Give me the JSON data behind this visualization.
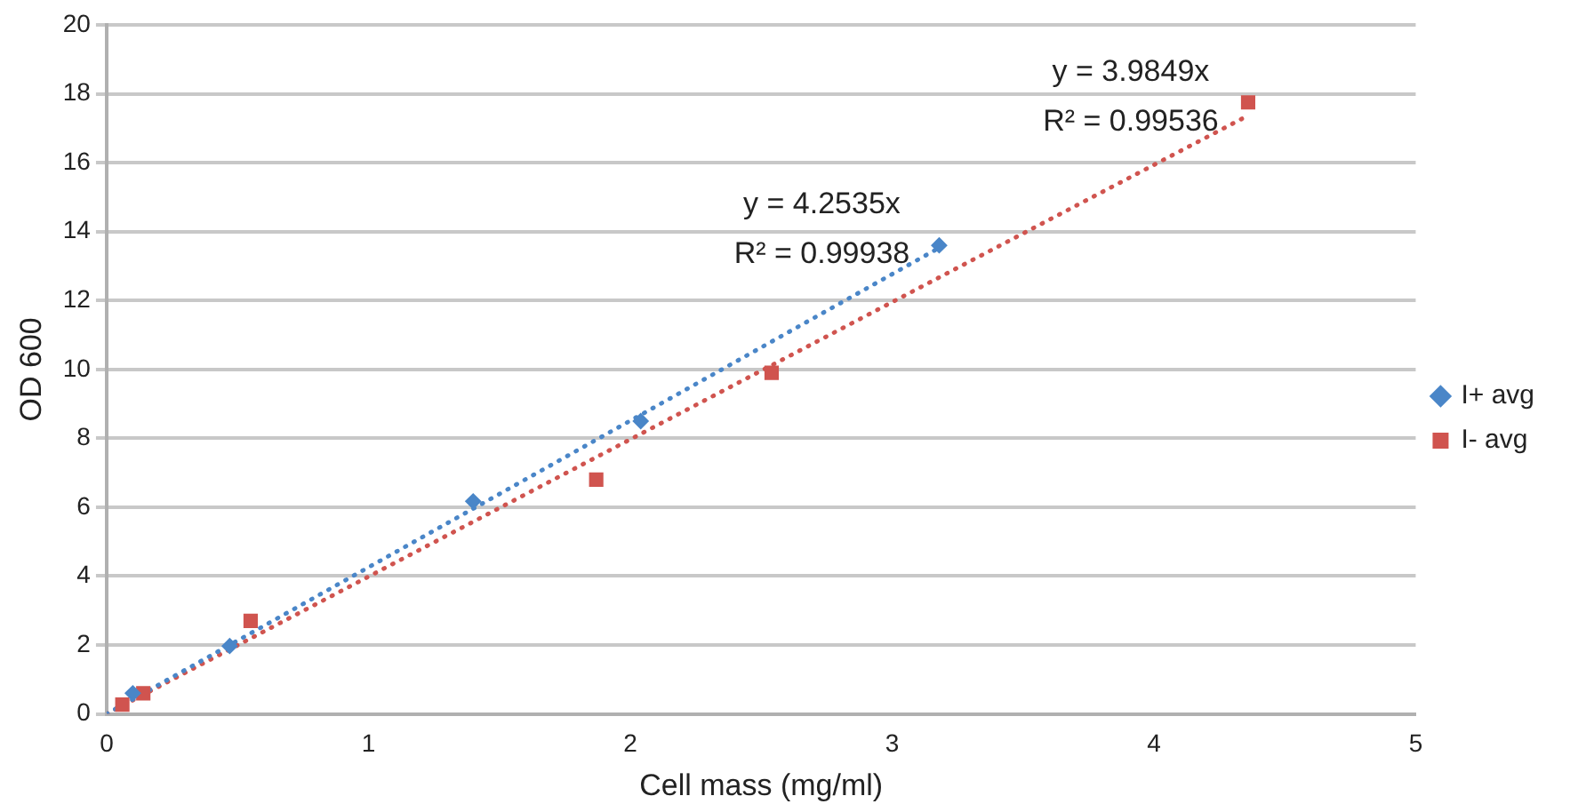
{
  "chart_data": {
    "type": "scatter",
    "xlabel": "Cell mass (mg/ml)",
    "ylabel": "OD 600",
    "xlim": [
      0,
      5
    ],
    "xticks": [
      0,
      1,
      2,
      3,
      4,
      5
    ],
    "ylim": [
      0,
      20
    ],
    "yticks": [
      0,
      2,
      4,
      6,
      8,
      10,
      12,
      14,
      16,
      18,
      20
    ],
    "grid": "y",
    "legend": "right",
    "series": [
      {
        "name": "I+ avg",
        "color": "#4a86c8",
        "marker": "diamond",
        "x": [
          0.1,
          0.47,
          1.4,
          2.04,
          3.18
        ],
        "values": [
          0.6,
          1.97,
          6.17,
          8.5,
          13.6
        ]
      },
      {
        "name": "I- avg",
        "color": "#d0544f",
        "marker": "square",
        "x": [
          0.06,
          0.14,
          0.55,
          1.87,
          2.54,
          4.36
        ],
        "values": [
          0.27,
          0.6,
          2.7,
          6.8,
          9.9,
          17.75
        ]
      },
      {
        "type": "line",
        "color": "#4a86c8",
        "line_style": "dotted",
        "marker": "none",
        "x": [
          0,
          3.18
        ],
        "values": [
          0,
          13.53
        ]
      },
      {
        "type": "line",
        "color": "#d0544f",
        "line_style": "dotted",
        "marker": "none",
        "x": [
          0,
          4.36
        ],
        "values": [
          0,
          17.37
        ]
      }
    ],
    "annotations": [
      "y = 4.2535x",
      "R² = 0.99938",
      "y = 3.9849x",
      "R² = 0.99536"
    ]
  }
}
